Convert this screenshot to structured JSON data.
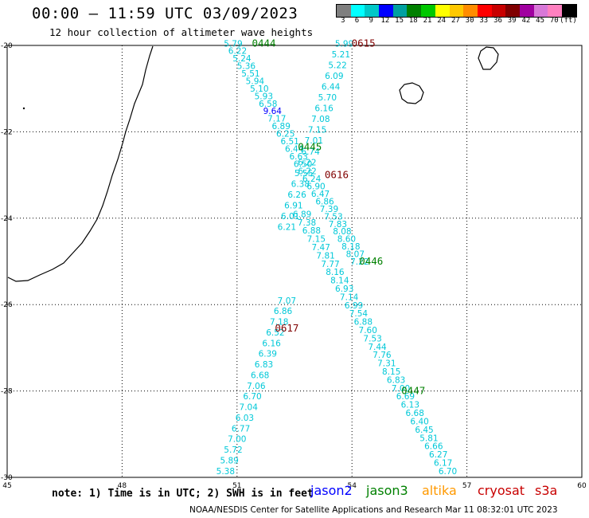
{
  "header": {
    "title": "00:00 – 11:59 UTC 03/09/2023",
    "subtitle": "12 hour collection of altimeter wave heights"
  },
  "color_scale": {
    "labels": [
      "3",
      "6",
      "9",
      "12",
      "15",
      "18",
      "21",
      "24",
      "27",
      "30",
      "33",
      "36",
      "39",
      "42",
      "45",
      "70",
      "(ft)"
    ],
    "colors": [
      "#7f7f7f",
      "#00ffff",
      "#00c8c8",
      "#0000ff",
      "#00a0a0",
      "#008000",
      "#00c800",
      "#ffff00",
      "#ffc800",
      "#ff8c00",
      "#ff0000",
      "#c80000",
      "#800000",
      "#a000a0",
      "#d878d8",
      "#ff80c0",
      "#000000"
    ]
  },
  "axes": {
    "lon": [
      45,
      48,
      51,
      54,
      57,
      60
    ],
    "lon_labels": [
      "45",
      "48",
      "51",
      "54",
      "57",
      "60"
    ],
    "lat": [
      -20,
      -22,
      -24,
      -26,
      -28,
      -30
    ],
    "lat_labels": [
      "-20",
      "-22",
      "-24",
      "-26",
      "-28",
      "-30"
    ]
  },
  "passes": [
    {
      "label": "0444",
      "color": "#008000",
      "lon": 51.7,
      "lat": -19.95
    },
    {
      "label": "0615",
      "color": "#800000",
      "lon": 54.3,
      "lat": -19.95
    },
    {
      "label": "0445",
      "color": "#008000",
      "lon": 52.9,
      "lat": -22.35
    },
    {
      "label": "0616",
      "color": "#800000",
      "lon": 53.6,
      "lat": -23.0
    },
    {
      "label": "0446",
      "color": "#008000",
      "lon": 54.5,
      "lat": -25.0
    },
    {
      "label": "0617",
      "color": "#800000",
      "lon": 52.3,
      "lat": -26.55
    },
    {
      "label": "0447",
      "color": "#008000",
      "lon": 55.6,
      "lat": -28.0
    }
  ],
  "tracks": [
    {
      "name": "track-a",
      "lon_start": 50.9,
      "lat_start": -19.95,
      "lon_end": 54.2,
      "lat_end": -25.0,
      "values": [
        "5.79",
        "6.22",
        "5.24",
        "5.36",
        "5.51",
        "5.94",
        "5.10",
        "5.93",
        "6.58",
        "9.64",
        "7.17",
        "6.89",
        "6.25",
        "6.51",
        "6.44",
        "6.63",
        "6.50",
        "6.22",
        "6.24",
        "6.90",
        "6.47",
        "6.86",
        "7.39",
        "7.53",
        "7.83",
        "8.08",
        "8.60",
        "8.18",
        "8.07",
        "7.22"
      ]
    },
    {
      "name": "track-b",
      "lon_start": 52.3,
      "lat_start": -25.9,
      "lon_end": 50.7,
      "lat_end": -29.85,
      "values": [
        "7.07",
        "6.86",
        "7.18",
        "6.52",
        "6.16",
        "6.39",
        "6.83",
        "6.68",
        "7.06",
        "6.70",
        "7.04",
        "6.03",
        "6.77",
        "7.00",
        "5.72",
        "5.89",
        "5.38"
      ]
    },
    {
      "name": "track-c",
      "lon_start": 53.8,
      "lat_start": -19.95,
      "lon_end": 52.3,
      "lat_end": -24.2,
      "values": [
        "5.99",
        "5.21",
        "5.22",
        "6.09",
        "6.44",
        "5.70",
        "6.16",
        "7.08",
        "7.15",
        "7.01",
        "6.74",
        "6.22",
        "5.55",
        "6.38",
        "6.26",
        "6.91",
        "6.01",
        "6.21"
      ]
    },
    {
      "name": "track-d",
      "lon_start": 52.7,
      "lat_start": -23.9,
      "lon_end": 56.5,
      "lat_end": -29.85,
      "values": [
        "6.89",
        "7.38",
        "6.88",
        "7.15",
        "7.47",
        "7.81",
        "7.77",
        "8.16",
        "8.14",
        "6.93",
        "7.14",
        "6.99",
        "7.54",
        "6.88",
        "7.60",
        "7.53",
        "7.44",
        "7.76",
        "7.31",
        "8.15",
        "6.83",
        "7.00",
        "6.69",
        "6.13",
        "6.68",
        "6.40",
        "6.45",
        "5.81",
        "6.66",
        "6.27",
        "6.17",
        "6.70"
      ]
    }
  ],
  "footer": {
    "note": "note: 1) Time is in UTC; 2) SWH is in feet",
    "credit": "NOAA/NESDIS Center for Satellite Applications and Research    Mar 11 08:32:01 UTC 2023",
    "satellites": [
      {
        "name": "jason2",
        "color": "#0000ff"
      },
      {
        "name": "jason3",
        "color": "#008000"
      },
      {
        "name": "altika",
        "color": "#ff9900"
      },
      {
        "name": "cryosat",
        "color": "#c80000"
      },
      {
        "name": "s3a",
        "color": "#c80000"
      }
    ]
  }
}
